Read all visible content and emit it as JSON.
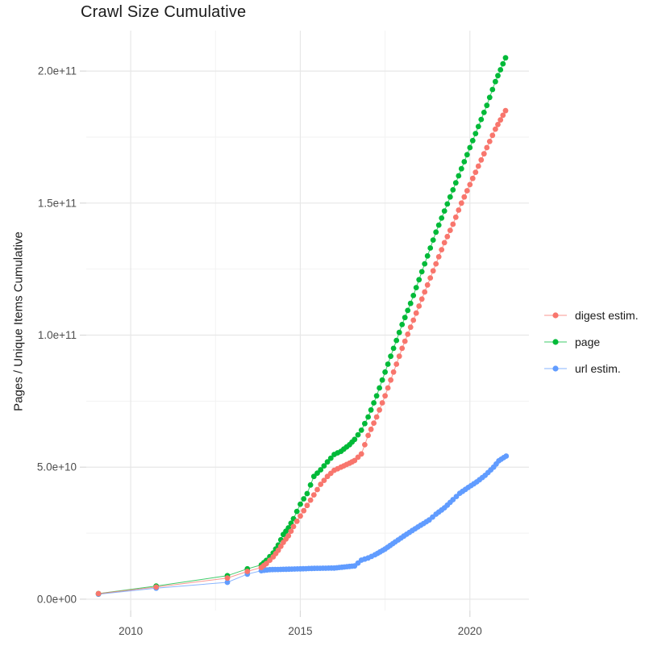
{
  "chart_data": {
    "type": "scatter",
    "title": "Crawl Size Cumulative",
    "xlabel": "",
    "ylabel": "Pages / Unique Items Cumulative",
    "value_unit": "items, stored as billions (1e9)",
    "legend_position": "right-center",
    "grid": "major and minor, light gray on white",
    "x_domain": [
      2008.69,
      2021.74
    ],
    "y_domain": [
      -4.3,
      215.3
    ],
    "x_ticks": [
      {
        "v": 2010,
        "label": "2010"
      },
      {
        "v": 2015,
        "label": "2015"
      },
      {
        "v": 2020,
        "label": "2020"
      }
    ],
    "x_minor": [
      2012.5,
      2017.5
    ],
    "y_ticks": [
      {
        "v": 0,
        "label": "0.0e+00"
      },
      {
        "v": 50,
        "label": "5.0e+10"
      },
      {
        "v": 100,
        "label": "1.0e+11"
      },
      {
        "v": 150,
        "label": "1.5e+11"
      },
      {
        "v": 200,
        "label": "2.0e+11"
      }
    ],
    "y_minor": [
      25,
      75,
      125,
      175
    ],
    "dense_from": 2013.8,
    "monthly_step": 0.0833,
    "series": [
      {
        "name": "digest estim.",
        "color": "#F8766D",
        "points": [
          [
            2009.05,
            2.1
          ],
          [
            2010.75,
            4.6
          ],
          [
            2012.85,
            8.0
          ],
          [
            2013.44,
            10.5
          ],
          [
            2013.85,
            12.0
          ],
          [
            2014.0,
            13.5
          ],
          [
            2014.2,
            16.0
          ],
          [
            2014.35,
            18.5
          ],
          [
            2014.5,
            21.5
          ],
          [
            2014.65,
            24.0
          ],
          [
            2014.8,
            27.5
          ],
          [
            2015.0,
            31.5
          ],
          [
            2015.2,
            35.5
          ],
          [
            2015.4,
            39.5
          ],
          [
            2015.6,
            43.5
          ],
          [
            2015.8,
            46.5
          ],
          [
            2016.0,
            48.8
          ],
          [
            2016.2,
            50.0
          ],
          [
            2016.45,
            51.5
          ],
          [
            2016.6,
            52.5
          ],
          [
            2016.8,
            55.0
          ],
          [
            2017.0,
            62.0
          ],
          [
            2017.25,
            69.0
          ],
          [
            2017.5,
            77.0
          ],
          [
            2017.75,
            86.0
          ],
          [
            2018.0,
            95.0
          ],
          [
            2018.25,
            103.0
          ],
          [
            2018.5,
            111.0
          ],
          [
            2018.75,
            119.0
          ],
          [
            2019.0,
            127.0
          ],
          [
            2019.25,
            135.0
          ],
          [
            2019.5,
            142.0
          ],
          [
            2019.75,
            150.0
          ],
          [
            2020.0,
            157.0
          ],
          [
            2020.25,
            164.0
          ],
          [
            2020.5,
            171.0
          ],
          [
            2020.75,
            178.0
          ],
          [
            2021.05,
            185.0
          ]
        ]
      },
      {
        "name": "page",
        "color": "#00BA38",
        "points": [
          [
            2009.05,
            2.1
          ],
          [
            2010.75,
            5.0
          ],
          [
            2012.85,
            8.9
          ],
          [
            2013.44,
            11.5
          ],
          [
            2013.85,
            13.0
          ],
          [
            2014.0,
            14.7
          ],
          [
            2014.2,
            17.5
          ],
          [
            2014.35,
            20.5
          ],
          [
            2014.5,
            24.5
          ],
          [
            2014.65,
            27.0
          ],
          [
            2014.8,
            30.5
          ],
          [
            2015.0,
            36.0
          ],
          [
            2015.2,
            40.0
          ],
          [
            2015.4,
            46.5
          ],
          [
            2015.6,
            49.0
          ],
          [
            2015.8,
            52.0
          ],
          [
            2016.0,
            54.8
          ],
          [
            2016.2,
            56.0
          ],
          [
            2016.45,
            58.5
          ],
          [
            2016.6,
            60.5
          ],
          [
            2016.8,
            64.0
          ],
          [
            2017.0,
            69.0
          ],
          [
            2017.25,
            77.0
          ],
          [
            2017.5,
            86.0
          ],
          [
            2017.75,
            95.0
          ],
          [
            2018.0,
            104.0
          ],
          [
            2018.25,
            112.0
          ],
          [
            2018.5,
            121.0
          ],
          [
            2018.75,
            130.0
          ],
          [
            2019.0,
            139.0
          ],
          [
            2019.25,
            147.0
          ],
          [
            2019.5,
            155.0
          ],
          [
            2019.75,
            163.0
          ],
          [
            2020.0,
            171.0
          ],
          [
            2020.25,
            179.0
          ],
          [
            2020.5,
            187.0
          ],
          [
            2020.75,
            196.0
          ],
          [
            2021.05,
            205.0
          ]
        ]
      },
      {
        "name": "url estim.",
        "color": "#619CFF",
        "points": [
          [
            2009.05,
            1.9
          ],
          [
            2010.75,
            4.2
          ],
          [
            2012.85,
            6.4
          ],
          [
            2013.44,
            9.5
          ],
          [
            2013.85,
            10.8
          ],
          [
            2014.1,
            11.2
          ],
          [
            2014.5,
            11.3
          ],
          [
            2015.0,
            11.5
          ],
          [
            2015.5,
            11.7
          ],
          [
            2016.0,
            11.8
          ],
          [
            2016.3,
            12.2
          ],
          [
            2016.6,
            12.6
          ],
          [
            2016.8,
            14.8
          ],
          [
            2017.0,
            15.6
          ],
          [
            2017.2,
            16.8
          ],
          [
            2017.5,
            19.0
          ],
          [
            2017.8,
            21.7
          ],
          [
            2018.05,
            23.9
          ],
          [
            2018.3,
            26.0
          ],
          [
            2018.55,
            28.0
          ],
          [
            2018.8,
            30.0
          ],
          [
            2019.0,
            32.2
          ],
          [
            2019.25,
            34.6
          ],
          [
            2019.5,
            37.7
          ],
          [
            2019.7,
            40.1
          ],
          [
            2019.95,
            42.3
          ],
          [
            2020.2,
            44.4
          ],
          [
            2020.45,
            46.9
          ],
          [
            2020.7,
            50.0
          ],
          [
            2020.85,
            52.4
          ],
          [
            2021.07,
            54.2
          ]
        ]
      }
    ],
    "style": {
      "grid_major_color": "#e7e7e7",
      "grid_minor_color": "#f2f2f2",
      "tick_mark_color": "#d9d9d9",
      "tick_label_color": "#4d4d4d",
      "text_color": "#1a1a1a",
      "background": "#ffffff",
      "dot_radius": 3.4
    }
  }
}
